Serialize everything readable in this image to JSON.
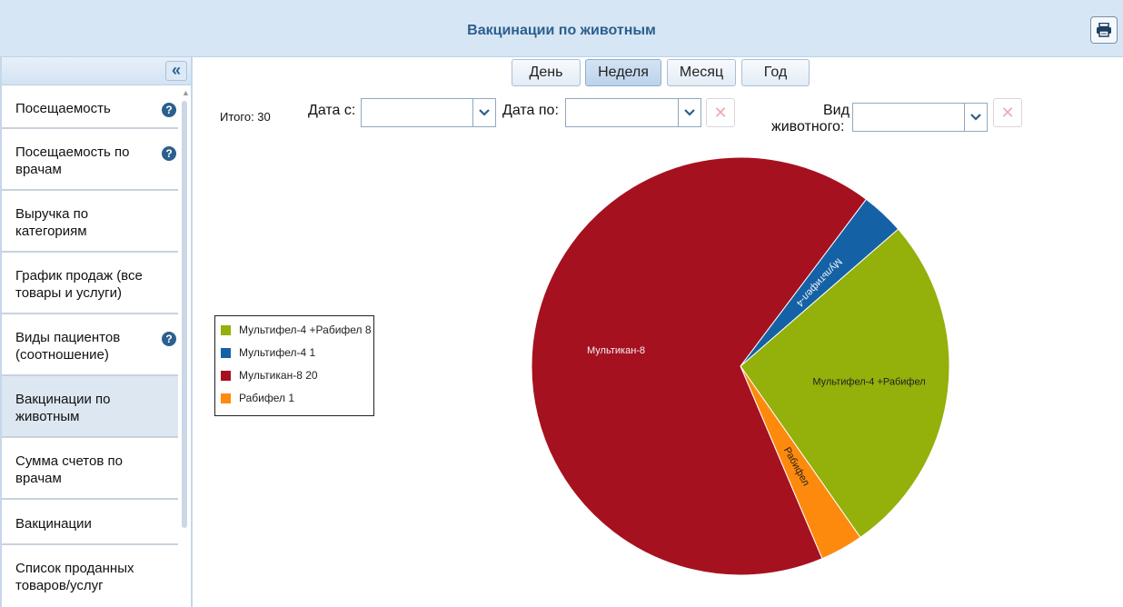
{
  "header": {
    "title": "Вакцинации по животным",
    "print_icon": "printer-icon"
  },
  "sidebar": {
    "collapse_label": "«",
    "items": [
      {
        "label": "Посещаемость",
        "help": true,
        "active": false
      },
      {
        "label": "Посещаемость по врачам",
        "help": true,
        "active": false
      },
      {
        "label": "Выручка по категориям",
        "help": false,
        "active": false
      },
      {
        "label": "График продаж (все товары и услуги)",
        "help": false,
        "active": false
      },
      {
        "label": "Виды пациентов (соотношение)",
        "help": true,
        "active": false
      },
      {
        "label": "Вакцинации по животным",
        "help": false,
        "active": true
      },
      {
        "label": "Сумма счетов по врачам",
        "help": false,
        "active": false
      },
      {
        "label": "Вакцинации",
        "help": false,
        "active": false
      },
      {
        "label": "Список проданных товаров/услуг",
        "help": false,
        "active": false
      }
    ]
  },
  "period_tabs": {
    "day": "День",
    "week": "Неделя",
    "month": "Месяц",
    "year": "Год",
    "active": "week"
  },
  "filters": {
    "total": "Итого: 30",
    "date_from_label": "Дата с:",
    "date_from_value": "",
    "date_to_label": "Дата по:",
    "date_to_value": "",
    "animal_label_1": "Вид",
    "animal_label_2": "животного:",
    "animal_value": "",
    "clear_symbol": "✕"
  },
  "legend": [
    {
      "text": "Мультифел-4 +Рабифел 8"
    },
    {
      "text": "Мультифел-4 1"
    },
    {
      "text": "Мультикан-8 20"
    },
    {
      "text": "Рабифел 1"
    }
  ],
  "chart_data": {
    "type": "pie",
    "title": "",
    "total": 30,
    "slices": [
      {
        "label": "Мультифел-4 +Рабифел",
        "value": 8,
        "color": "#94b00a"
      },
      {
        "label": "Рабифел",
        "value": 1,
        "color": "#fd8a0d"
      },
      {
        "label": "Мультикан-8",
        "value": 20,
        "color": "#a6111f"
      },
      {
        "label": "Мультифел-4",
        "value": 1,
        "color": "#1561a6"
      }
    ],
    "legend_position": "left"
  },
  "colors": {
    "header_bg": "#d7e6f5",
    "title": "#2b5f8e",
    "active_tab": "#c8dbef"
  }
}
